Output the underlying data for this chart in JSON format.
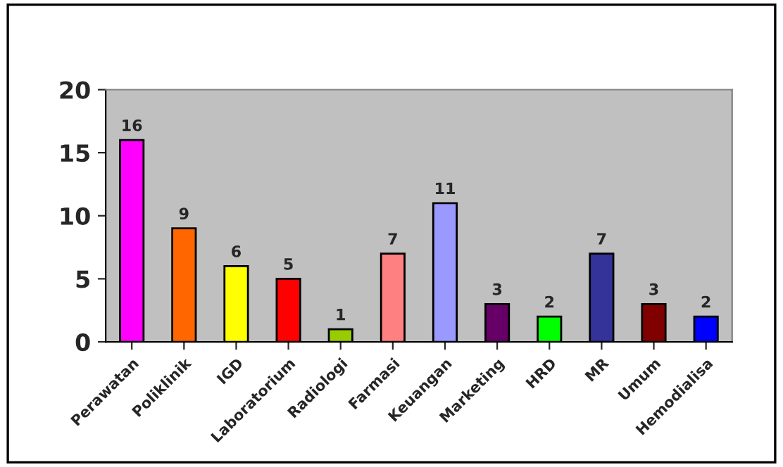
{
  "chart_data": {
    "type": "bar",
    "categories": [
      "Perawatan",
      "Poliklinik",
      "IGD",
      "Laboratorium",
      "Radiologi",
      "Farmasi",
      "Keuangan",
      "Marketing",
      "HRD",
      "MR",
      "Umum",
      "Hemodialisa"
    ],
    "values": [
      16,
      9,
      6,
      5,
      1,
      7,
      11,
      3,
      2,
      7,
      3,
      2
    ],
    "colors": [
      "#ff00ff",
      "#ff6600",
      "#ffff00",
      "#ff0000",
      "#99cc00",
      "#ff8080",
      "#9999ff",
      "#660066",
      "#00ff00",
      "#333399",
      "#800000",
      "#0000ff"
    ],
    "ylim": [
      0,
      20
    ],
    "yticks": [
      0,
      5,
      10,
      15,
      20
    ],
    "grid": false,
    "data_labels": true
  }
}
